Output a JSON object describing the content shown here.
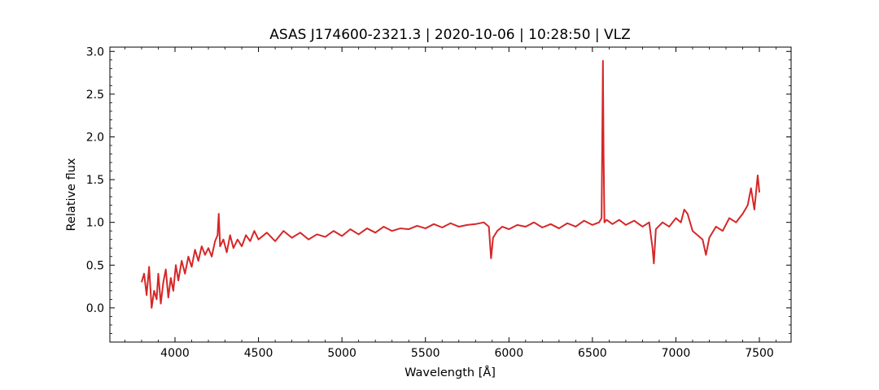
{
  "chart_data": {
    "type": "line",
    "title": "ASAS J174600-2321.3 | 2020-10-06 | 10:28:50 | VLZ",
    "xlabel": "Wavelength [Å]",
    "ylabel": "Relative flux",
    "xlim": [
      3610,
      7690
    ],
    "ylim": [
      -0.4,
      3.05
    ],
    "xticks": [
      4000,
      4500,
      5000,
      5500,
      6000,
      6500,
      7000,
      7500
    ],
    "xtick_labels": [
      "4000",
      "4500",
      "5000",
      "5500",
      "6000",
      "6500",
      "7000",
      "7500"
    ],
    "yticks": [
      0.0,
      0.5,
      1.0,
      1.5,
      2.0,
      2.5,
      3.0
    ],
    "ytick_labels": [
      "0.0",
      "0.5",
      "1.0",
      "1.5",
      "2.0",
      "2.5",
      "3.0"
    ],
    "minor_ticks": true,
    "ticks_direction": "in",
    "ticks_all_sides": true,
    "grid": false,
    "legend": "none",
    "series": [
      {
        "color": "#d62728",
        "x": [
          3800,
          3815,
          3830,
          3845,
          3860,
          3875,
          3890,
          3900,
          3915,
          3930,
          3945,
          3960,
          3975,
          3990,
          4005,
          4020,
          4040,
          4060,
          4080,
          4100,
          4120,
          4140,
          4160,
          4180,
          4200,
          4220,
          4240,
          4255,
          4262,
          4270,
          4290,
          4310,
          4330,
          4350,
          4375,
          4400,
          4425,
          4450,
          4475,
          4500,
          4550,
          4600,
          4650,
          4700,
          4750,
          4800,
          4850,
          4900,
          4950,
          5000,
          5050,
          5100,
          5150,
          5200,
          5250,
          5300,
          5350,
          5400,
          5450,
          5500,
          5550,
          5600,
          5650,
          5700,
          5750,
          5800,
          5850,
          5880,
          5893,
          5905,
          5930,
          5960,
          6000,
          6050,
          6100,
          6150,
          6200,
          6250,
          6300,
          6350,
          6400,
          6450,
          6500,
          6540,
          6555,
          6560,
          6563,
          6567,
          6572,
          6585,
          6620,
          6660,
          6700,
          6750,
          6800,
          6840,
          6860,
          6868,
          6880,
          6920,
          6960,
          7000,
          7030,
          7050,
          7070,
          7100,
          7130,
          7160,
          7180,
          7200,
          7240,
          7280,
          7320,
          7360,
          7400,
          7430,
          7450,
          7470,
          7490,
          7500
        ],
        "y": [
          0.3,
          0.4,
          0.15,
          0.48,
          0.0,
          0.2,
          0.1,
          0.4,
          0.05,
          0.3,
          0.45,
          0.12,
          0.35,
          0.2,
          0.5,
          0.32,
          0.55,
          0.4,
          0.6,
          0.48,
          0.68,
          0.55,
          0.72,
          0.62,
          0.7,
          0.6,
          0.78,
          0.85,
          1.1,
          0.72,
          0.8,
          0.65,
          0.85,
          0.7,
          0.8,
          0.72,
          0.85,
          0.78,
          0.9,
          0.8,
          0.88,
          0.78,
          0.9,
          0.82,
          0.88,
          0.8,
          0.86,
          0.83,
          0.9,
          0.84,
          0.92,
          0.86,
          0.93,
          0.88,
          0.95,
          0.9,
          0.93,
          0.92,
          0.96,
          0.93,
          0.98,
          0.94,
          0.99,
          0.95,
          0.97,
          0.98,
          1.0,
          0.95,
          0.58,
          0.82,
          0.9,
          0.95,
          0.92,
          0.97,
          0.95,
          1.0,
          0.94,
          0.98,
          0.93,
          0.99,
          0.95,
          1.02,
          0.97,
          1.0,
          1.05,
          2.2,
          2.89,
          1.8,
          1.0,
          1.03,
          0.98,
          1.03,
          0.97,
          1.02,
          0.95,
          1.0,
          0.7,
          0.52,
          0.92,
          1.0,
          0.95,
          1.05,
          1.0,
          1.15,
          1.1,
          0.9,
          0.85,
          0.8,
          0.62,
          0.82,
          0.95,
          0.9,
          1.05,
          1.0,
          1.1,
          1.2,
          1.4,
          1.15,
          1.55,
          1.35
        ]
      }
    ]
  }
}
